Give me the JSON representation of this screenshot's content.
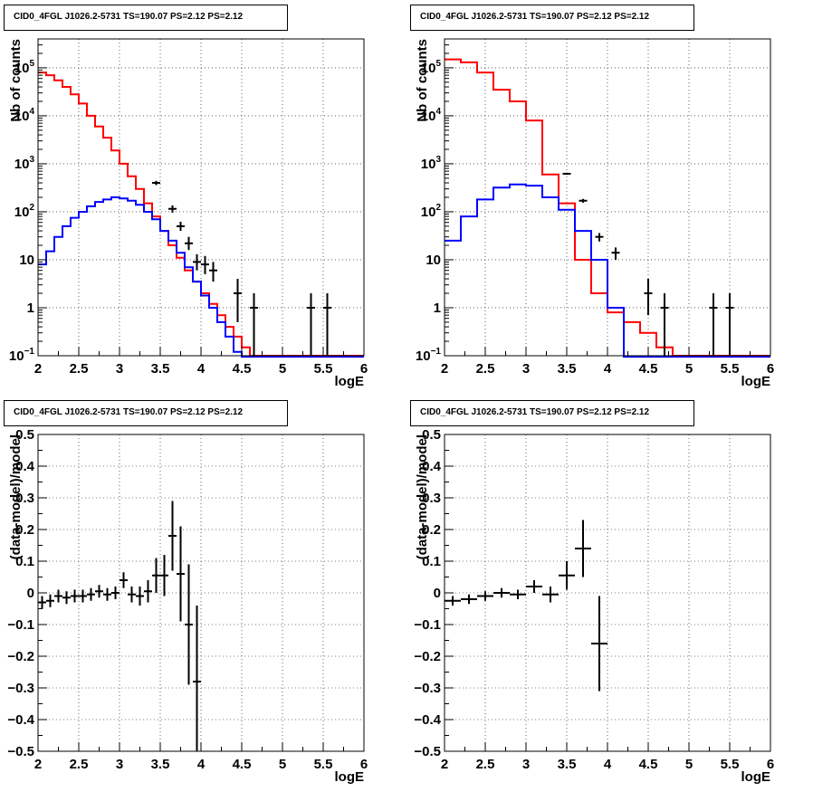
{
  "chart_data": [
    {
      "type": "step-histogram",
      "title": "CID0_4FGL J1026.2-5731 TS=190.07 PS=2.12 PS=2.12",
      "xlabel": "logE",
      "ylabel": "Nb of counts",
      "xlim": [
        2,
        6
      ],
      "ylim": [
        0.1,
        400000
      ],
      "yscale": "log",
      "grid": true,
      "xticks": [
        "2",
        "2.5",
        "3",
        "3.5",
        "4",
        "4.5",
        "5",
        "5.5",
        "6"
      ],
      "yticks": [
        {
          "value": 0.1,
          "base": "10",
          "exp": "−1"
        },
        {
          "value": 1,
          "label": "1"
        },
        {
          "value": 10,
          "label": "10"
        },
        {
          "value": 100,
          "base": "10",
          "exp": "2"
        },
        {
          "value": 1000,
          "base": "10",
          "exp": "3"
        },
        {
          "value": 10000,
          "base": "10",
          "exp": "4"
        },
        {
          "value": 100000,
          "base": "10",
          "exp": "5"
        }
      ],
      "edges": [
        2.0,
        2.1,
        2.2,
        2.3,
        2.4,
        2.5,
        2.6,
        2.7,
        2.8,
        2.9,
        3.0,
        3.1,
        3.2,
        3.3,
        3.4,
        3.5,
        3.6,
        3.7,
        3.8,
        3.9,
        4.0,
        4.1,
        4.2,
        4.3,
        4.4,
        4.5,
        4.6,
        4.7,
        4.8,
        4.9,
        5.0,
        5.1,
        5.2,
        5.3,
        5.4,
        5.5,
        5.6,
        5.7,
        5.8,
        5.9,
        6.0
      ],
      "series": [
        {
          "role": "total-model",
          "color": "#ff0000",
          "values": [
            80000,
            70000,
            55000,
            40000,
            28000,
            18000,
            10000,
            6000,
            3500,
            1900,
            1000,
            550,
            300,
            150,
            80,
            40,
            20,
            11,
            6,
            3.5,
            2,
            1.2,
            0.7,
            0.4,
            0.25,
            0.15,
            0.1,
            0.1,
            0.1,
            0.1,
            0.1,
            0.1,
            0.1,
            0.1,
            0.1,
            0.1,
            0.1,
            0.1,
            0.1,
            0.1
          ]
        },
        {
          "role": "source-model",
          "color": "#0000ff",
          "values": [
            8,
            15,
            30,
            50,
            75,
            100,
            130,
            160,
            180,
            200,
            190,
            170,
            140,
            100,
            70,
            40,
            25,
            14,
            7,
            3.5,
            1.8,
            1,
            0.5,
            0.25,
            0.12,
            0.08,
            0.08,
            0.08,
            0.08,
            0.08,
            0.08,
            0.08,
            0.08,
            0.08,
            0.08,
            0.08,
            0.08,
            0.08,
            0.08,
            0.08
          ]
        }
      ],
      "data_points": {
        "color": "#000000",
        "points": [
          {
            "x": 3.45,
            "y": 400,
            "ylo": 360,
            "yhi": 440
          },
          {
            "x": 3.65,
            "y": 115,
            "ylo": 96,
            "yhi": 136
          },
          {
            "x": 3.75,
            "y": 50,
            "ylo": 40,
            "yhi": 62
          },
          {
            "x": 3.85,
            "y": 22,
            "ylo": 16,
            "yhi": 30
          },
          {
            "x": 3.95,
            "y": 9,
            "ylo": 6,
            "yhi": 13
          },
          {
            "x": 4.05,
            "y": 8,
            "ylo": 5,
            "yhi": 12
          },
          {
            "x": 4.15,
            "y": 6,
            "ylo": 3.5,
            "yhi": 9
          },
          {
            "x": 4.45,
            "y": 2,
            "ylo": 0.5,
            "yhi": 4
          },
          {
            "x": 4.65,
            "y": 1,
            "ylo": 0.1,
            "yhi": 2
          },
          {
            "x": 5.35,
            "y": 1,
            "ylo": 0.1,
            "yhi": 2
          },
          {
            "x": 5.55,
            "y": 1,
            "ylo": 0.1,
            "yhi": 2
          }
        ]
      }
    },
    {
      "type": "step-histogram",
      "title": "CID0_4FGL J1026.2-5731 TS=190.07 PS=2.12 PS=2.12",
      "xlabel": "logE",
      "ylabel": "Nb of counts",
      "xlim": [
        2,
        6
      ],
      "ylim": [
        0.1,
        400000
      ],
      "yscale": "log",
      "grid": true,
      "xticks": [
        "2",
        "2.5",
        "3",
        "3.5",
        "4",
        "4.5",
        "5",
        "5.5",
        "6"
      ],
      "yticks": [
        {
          "value": 0.1,
          "base": "10",
          "exp": "−1"
        },
        {
          "value": 1,
          "label": "1"
        },
        {
          "value": 10,
          "label": "10"
        },
        {
          "value": 100,
          "base": "10",
          "exp": "2"
        },
        {
          "value": 1000,
          "base": "10",
          "exp": "3"
        },
        {
          "value": 10000,
          "base": "10",
          "exp": "4"
        },
        {
          "value": 100000,
          "base": "10",
          "exp": "5"
        }
      ],
      "edges": [
        2.0,
        2.2,
        2.4,
        2.6,
        2.8,
        3.0,
        3.2,
        3.4,
        3.6,
        3.8,
        4.0,
        4.2,
        4.4,
        4.6,
        4.8,
        5.0,
        5.2,
        5.4,
        5.6,
        5.8,
        6.0
      ],
      "series": [
        {
          "role": "total-model",
          "color": "#ff0000",
          "values": [
            150000,
            130000,
            80000,
            35000,
            20000,
            8000,
            600,
            150,
            10,
            2,
            0.8,
            0.5,
            0.3,
            0.15,
            0.1,
            0.1,
            0.1,
            0.1,
            0.1,
            0.1
          ]
        },
        {
          "role": "source-model",
          "color": "#0000ff",
          "values": [
            25,
            80,
            180,
            320,
            370,
            350,
            200,
            110,
            40,
            10,
            1,
            0.08,
            0.08,
            0.08,
            0.08,
            0.08,
            0.08,
            0.08,
            0.08,
            0.08
          ]
        }
      ],
      "data_points": {
        "color": "#000000",
        "points": [
          {
            "x": 3.5,
            "y": 620,
            "ylo": 590,
            "yhi": 650
          },
          {
            "x": 3.7,
            "y": 170,
            "ylo": 155,
            "yhi": 185
          },
          {
            "x": 3.9,
            "y": 30,
            "ylo": 24,
            "yhi": 36
          },
          {
            "x": 4.1,
            "y": 14,
            "ylo": 10,
            "yhi": 18
          },
          {
            "x": 4.5,
            "y": 2,
            "ylo": 0.7,
            "yhi": 4
          },
          {
            "x": 4.7,
            "y": 1,
            "ylo": 0.1,
            "yhi": 2
          },
          {
            "x": 5.3,
            "y": 1,
            "ylo": 0.1,
            "yhi": 2
          },
          {
            "x": 5.5,
            "y": 1,
            "ylo": 0.1,
            "yhi": 2
          }
        ]
      }
    },
    {
      "type": "scatter",
      "title": "CID0_4FGL J1026.2-5731 TS=190.07 PS=2.12 PS=2.12",
      "xlabel": "logE",
      "ylabel": "(data-model)/model",
      "xlim": [
        2,
        6
      ],
      "ylim": [
        -0.5,
        0.5
      ],
      "yscale": "linear",
      "grid": true,
      "xticks": [
        "2",
        "2.5",
        "3",
        "3.5",
        "4",
        "4.5",
        "5",
        "5.5",
        "6"
      ],
      "yticks": [
        {
          "value": -0.5,
          "label": "−0.5"
        },
        {
          "value": -0.4,
          "label": "−0.4"
        },
        {
          "value": -0.3,
          "label": "−0.3"
        },
        {
          "value": -0.2,
          "label": "−0.2"
        },
        {
          "value": -0.1,
          "label": "−0.1"
        },
        {
          "value": 0,
          "label": "0"
        },
        {
          "value": 0.1,
          "label": "0.1"
        },
        {
          "value": 0.2,
          "label": "0.2"
        },
        {
          "value": 0.3,
          "label": "0.3"
        },
        {
          "value": 0.4,
          "label": "0.4"
        },
        {
          "value": 0.5,
          "label": "0.5"
        }
      ],
      "data_points": {
        "color": "#000000",
        "xerr": 0.05,
        "points": [
          {
            "x": 2.05,
            "y": -0.03,
            "ylo": -0.05,
            "yhi": -0.01
          },
          {
            "x": 2.15,
            "y": -0.025,
            "ylo": -0.045,
            "yhi": -0.005
          },
          {
            "x": 2.25,
            "y": -0.01,
            "ylo": -0.03,
            "yhi": 0.01
          },
          {
            "x": 2.35,
            "y": -0.015,
            "ylo": -0.035,
            "yhi": 0.005
          },
          {
            "x": 2.45,
            "y": -0.01,
            "ylo": -0.03,
            "yhi": 0.01
          },
          {
            "x": 2.55,
            "y": -0.01,
            "ylo": -0.03,
            "yhi": 0.01
          },
          {
            "x": 2.65,
            "y": -0.005,
            "ylo": -0.025,
            "yhi": 0.015
          },
          {
            "x": 2.75,
            "y": 0.005,
            "ylo": -0.015,
            "yhi": 0.025
          },
          {
            "x": 2.85,
            "y": -0.005,
            "ylo": -0.025,
            "yhi": 0.015
          },
          {
            "x": 2.95,
            "y": 0.0,
            "ylo": -0.02,
            "yhi": 0.02
          },
          {
            "x": 3.05,
            "y": 0.04,
            "ylo": 0.015,
            "yhi": 0.065
          },
          {
            "x": 3.15,
            "y": -0.005,
            "ylo": -0.03,
            "yhi": 0.02
          },
          {
            "x": 3.25,
            "y": -0.01,
            "ylo": -0.04,
            "yhi": 0.02
          },
          {
            "x": 3.35,
            "y": 0.005,
            "ylo": -0.03,
            "yhi": 0.04
          },
          {
            "x": 3.45,
            "y": 0.055,
            "ylo": 0.0,
            "yhi": 0.11
          },
          {
            "x": 3.55,
            "y": 0.055,
            "ylo": -0.01,
            "yhi": 0.12
          },
          {
            "x": 3.65,
            "y": 0.18,
            "ylo": 0.07,
            "yhi": 0.29
          },
          {
            "x": 3.75,
            "y": 0.06,
            "ylo": -0.09,
            "yhi": 0.21
          },
          {
            "x": 3.85,
            "y": -0.1,
            "ylo": -0.29,
            "yhi": 0.09
          },
          {
            "x": 3.95,
            "y": -0.28,
            "ylo": -0.5,
            "yhi": -0.04
          }
        ]
      }
    },
    {
      "type": "scatter",
      "title": "CID0_4FGL J1026.2-5731 TS=190.07 PS=2.12 PS=2.12",
      "xlabel": "logE",
      "ylabel": "(data-model)/model",
      "xlim": [
        2,
        6
      ],
      "ylim": [
        -0.5,
        0.5
      ],
      "yscale": "linear",
      "grid": true,
      "xticks": [
        "2",
        "2.5",
        "3",
        "3.5",
        "4",
        "4.5",
        "5",
        "5.5",
        "6"
      ],
      "yticks": [
        {
          "value": -0.5,
          "label": "−0.5"
        },
        {
          "value": -0.4,
          "label": "−0.4"
        },
        {
          "value": -0.3,
          "label": "−0.3"
        },
        {
          "value": -0.2,
          "label": "−0.2"
        },
        {
          "value": -0.1,
          "label": "−0.1"
        },
        {
          "value": 0,
          "label": "0"
        },
        {
          "value": 0.1,
          "label": "0.1"
        },
        {
          "value": 0.2,
          "label": "0.2"
        },
        {
          "value": 0.3,
          "label": "0.3"
        },
        {
          "value": 0.4,
          "label": "0.4"
        },
        {
          "value": 0.5,
          "label": "0.5"
        }
      ],
      "data_points": {
        "color": "#000000",
        "xerr": 0.1,
        "points": [
          {
            "x": 2.1,
            "y": -0.025,
            "ylo": -0.04,
            "yhi": -0.01
          },
          {
            "x": 2.3,
            "y": -0.02,
            "ylo": -0.035,
            "yhi": -0.005
          },
          {
            "x": 2.5,
            "y": -0.01,
            "ylo": -0.025,
            "yhi": 0.005
          },
          {
            "x": 2.7,
            "y": 0.0,
            "ylo": -0.015,
            "yhi": 0.015
          },
          {
            "x": 2.9,
            "y": -0.005,
            "ylo": -0.02,
            "yhi": 0.01
          },
          {
            "x": 3.1,
            "y": 0.02,
            "ylo": 0.0,
            "yhi": 0.04
          },
          {
            "x": 3.3,
            "y": -0.005,
            "ylo": -0.03,
            "yhi": 0.02
          },
          {
            "x": 3.5,
            "y": 0.055,
            "ylo": 0.01,
            "yhi": 0.1
          },
          {
            "x": 3.7,
            "y": 0.14,
            "ylo": 0.05,
            "yhi": 0.23
          },
          {
            "x": 3.9,
            "y": -0.16,
            "ylo": -0.31,
            "yhi": -0.01
          }
        ]
      }
    }
  ]
}
